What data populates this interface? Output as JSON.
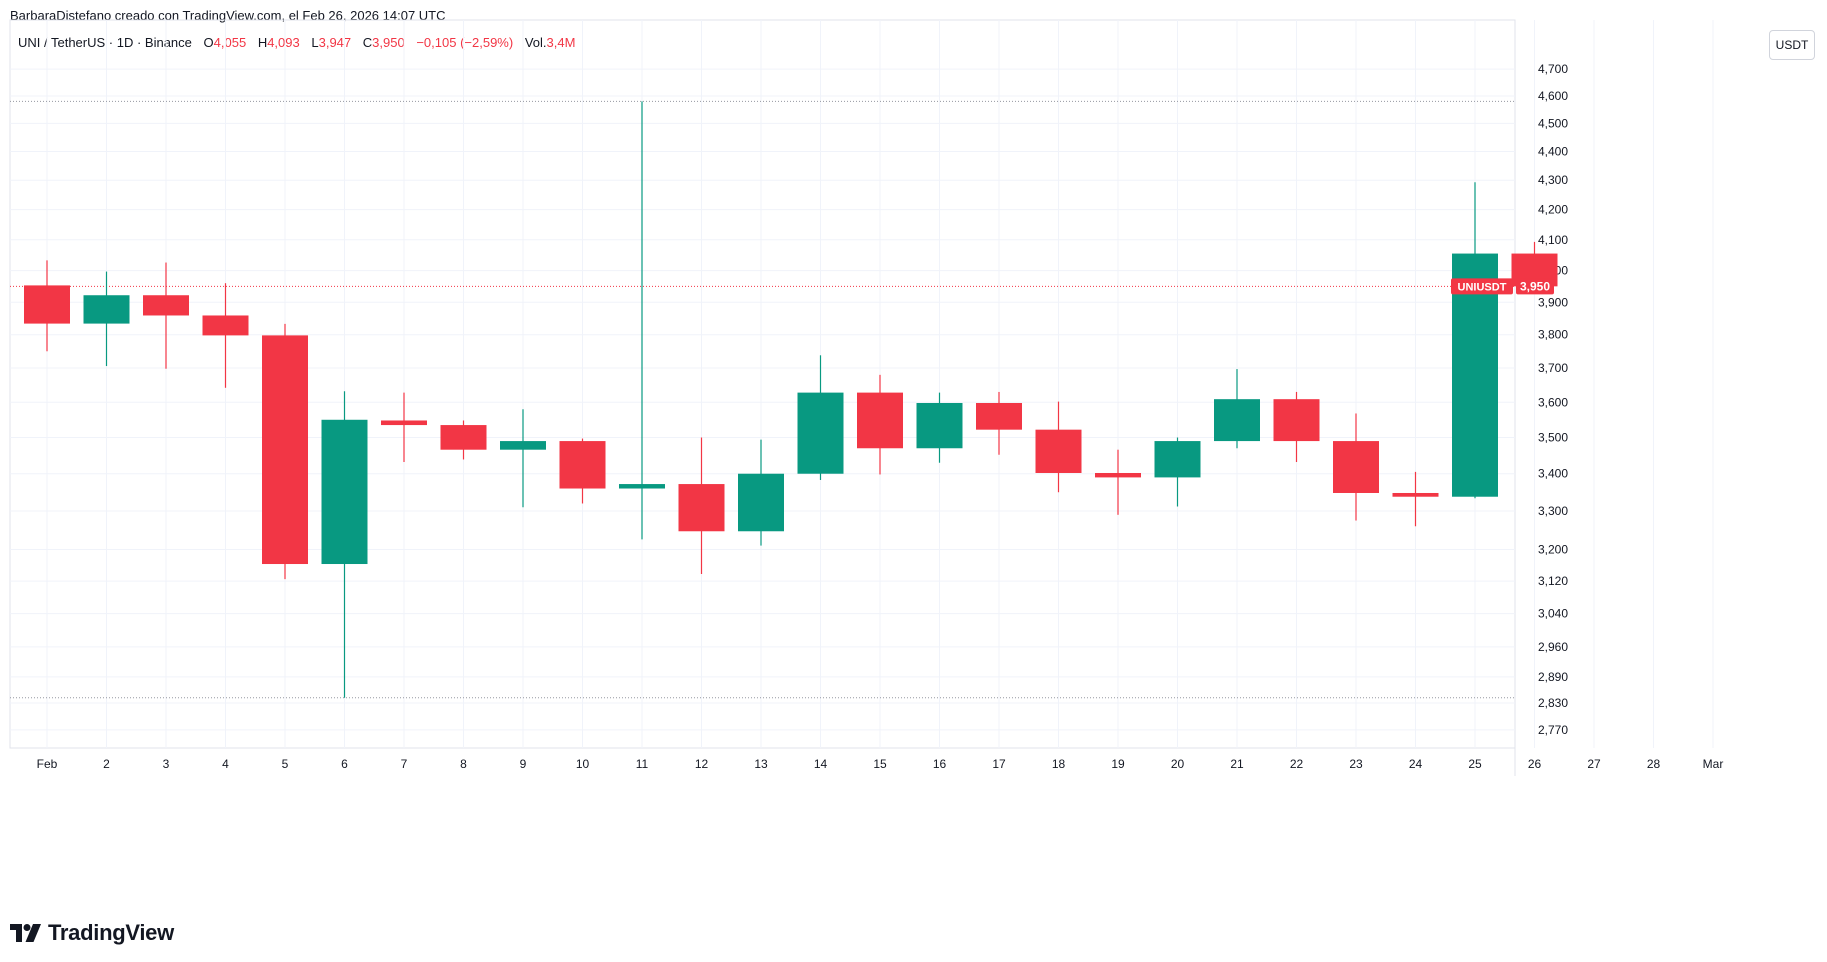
{
  "caption": "BarbaraDistefano creado con TradingView.com, el Feb 26, 2026 14:07 UTC",
  "legend": {
    "symbol": "UNI / TetherUS · 1D · Binance",
    "o_label": "O",
    "o_value": "4,055",
    "h_label": "H",
    "h_value": "4,093",
    "l_label": "L",
    "l_value": "3,947",
    "c_label": "C",
    "c_value": "3,950",
    "change": "−0,105 (−2,59%)",
    "vol_label": "Vol.",
    "vol_value": "3,4M"
  },
  "currency": "USDT",
  "price_tag": {
    "symbol": "UNIUSDT",
    "value": "3,950"
  },
  "brand": {
    "name": "TradingView",
    "logo_icon": "tradingview-logo-icon"
  },
  "colors": {
    "up": "#089981",
    "down": "#f23645",
    "grid": "#f0f3fa",
    "text": "#131722",
    "tag": "#f23645"
  },
  "chart_data": {
    "type": "candlestick",
    "x_ticks": [
      "Feb",
      "2",
      "3",
      "4",
      "5",
      "6",
      "7",
      "8",
      "9",
      "10",
      "11",
      "12",
      "13",
      "14",
      "15",
      "16",
      "17",
      "18",
      "19",
      "20",
      "21",
      "22",
      "23",
      "24",
      "25",
      "26",
      "27",
      "28",
      "Mar"
    ],
    "y_ticks": [
      "4,700",
      "4,600",
      "4,500",
      "4,400",
      "4,300",
      "4,200",
      "4,100",
      "4,000",
      "3,900",
      "3,800",
      "3,700",
      "3,600",
      "3,500",
      "3,400",
      "3,300",
      "3,200",
      "3,120",
      "3,040",
      "2,960",
      "2,890",
      "2,830",
      "2,770"
    ],
    "y_tick_values": [
      4.7,
      4.6,
      4.5,
      4.4,
      4.3,
      4.2,
      4.1,
      4.0,
      3.9,
      3.8,
      3.7,
      3.6,
      3.5,
      3.4,
      3.3,
      3.2,
      3.12,
      3.04,
      2.96,
      2.89,
      2.83,
      2.77
    ],
    "scale": "log",
    "ylim": [
      2.73,
      4.78
    ],
    "last_price": 3.95,
    "high_line": 4.58,
    "low_line": 2.842,
    "candles": [
      {
        "date": "Feb",
        "o": 3.953,
        "h": 4.033,
        "l": 3.75,
        "c": 3.834
      },
      {
        "date": "2",
        "o": 3.834,
        "h": 3.997,
        "l": 3.706,
        "c": 3.922
      },
      {
        "date": "3",
        "o": 3.922,
        "h": 4.026,
        "l": 3.698,
        "c": 3.859
      },
      {
        "date": "4",
        "o": 3.859,
        "h": 3.96,
        "l": 3.642,
        "c": 3.798
      },
      {
        "date": "5",
        "o": 3.798,
        "h": 3.833,
        "l": 3.125,
        "c": 3.163
      },
      {
        "date": "6",
        "o": 3.163,
        "h": 3.632,
        "l": 2.842,
        "c": 3.55
      },
      {
        "date": "7",
        "o": 3.548,
        "h": 3.628,
        "l": 3.432,
        "c": 3.535
      },
      {
        "date": "8",
        "o": 3.535,
        "h": 3.548,
        "l": 3.439,
        "c": 3.466
      },
      {
        "date": "9",
        "o": 3.466,
        "h": 3.58,
        "l": 3.31,
        "c": 3.49
      },
      {
        "date": "10",
        "o": 3.49,
        "h": 3.497,
        "l": 3.32,
        "c": 3.36
      },
      {
        "date": "11",
        "o": 3.36,
        "h": 4.58,
        "l": 3.226,
        "c": 3.372
      },
      {
        "date": "12",
        "o": 3.372,
        "h": 3.5,
        "l": 3.138,
        "c": 3.247
      },
      {
        "date": "13",
        "o": 3.247,
        "h": 3.494,
        "l": 3.21,
        "c": 3.4
      },
      {
        "date": "14",
        "o": 3.4,
        "h": 3.738,
        "l": 3.383,
        "c": 3.628
      },
      {
        "date": "15",
        "o": 3.628,
        "h": 3.68,
        "l": 3.398,
        "c": 3.47
      },
      {
        "date": "16",
        "o": 3.47,
        "h": 3.628,
        "l": 3.43,
        "c": 3.598
      },
      {
        "date": "17",
        "o": 3.598,
        "h": 3.63,
        "l": 3.452,
        "c": 3.522
      },
      {
        "date": "18",
        "o": 3.522,
        "h": 3.602,
        "l": 3.35,
        "c": 3.402
      },
      {
        "date": "19",
        "o": 3.402,
        "h": 3.466,
        "l": 3.29,
        "c": 3.39
      },
      {
        "date": "20",
        "o": 3.39,
        "h": 3.5,
        "l": 3.312,
        "c": 3.49
      },
      {
        "date": "21",
        "o": 3.49,
        "h": 3.697,
        "l": 3.47,
        "c": 3.609
      },
      {
        "date": "22",
        "o": 3.609,
        "h": 3.63,
        "l": 3.432,
        "c": 3.49
      },
      {
        "date": "23",
        "o": 3.49,
        "h": 3.568,
        "l": 3.275,
        "c": 3.348
      },
      {
        "date": "24",
        "o": 3.348,
        "h": 3.405,
        "l": 3.26,
        "c": 3.338
      },
      {
        "date": "25",
        "o": 3.338,
        "h": 4.293,
        "l": 3.334,
        "c": 4.055
      },
      {
        "date": "26",
        "o": 4.055,
        "h": 4.093,
        "l": 3.947,
        "c": 3.95
      }
    ]
  }
}
